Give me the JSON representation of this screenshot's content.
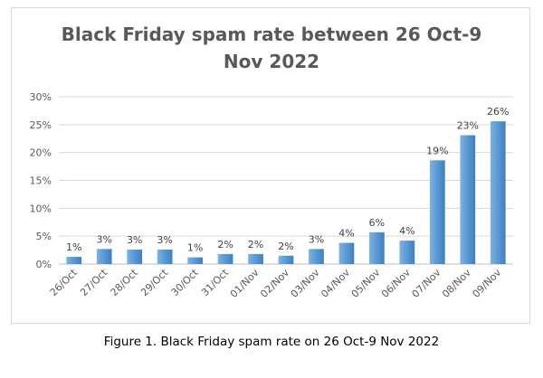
{
  "chart_data": {
    "type": "bar",
    "title_lines": [
      "Black Friday spam rate between 26 Oct-9",
      "Nov 2022"
    ],
    "xlabel": "",
    "ylabel": "",
    "categories": [
      "26/Oct",
      "27/Oct",
      "28/Oct",
      "29/Oct",
      "30/Oct",
      "31/Oct",
      "01/Nov",
      "02/Nov",
      "03/Nov",
      "04/Nov",
      "05/Nov",
      "06/Nov",
      "07/Nov",
      "08/Nov",
      "09/Nov"
    ],
    "values": [
      1.3,
      2.7,
      2.6,
      2.6,
      1.2,
      1.8,
      1.8,
      1.5,
      2.7,
      3.8,
      5.7,
      4.2,
      18.6,
      23.1,
      25.6
    ],
    "data_labels": [
      "1%",
      "3%",
      "3%",
      "3%",
      "1%",
      "2%",
      "2%",
      "2%",
      "3%",
      "4%",
      "6%",
      "4%",
      "19%",
      "23%",
      "26%"
    ],
    "y_ticks": [
      0,
      5,
      10,
      15,
      20,
      25,
      30
    ],
    "y_tick_labels": [
      "0%",
      "5%",
      "10%",
      "15%",
      "20%",
      "25%",
      "30%"
    ],
    "ylim": [
      0,
      30
    ],
    "grid": true,
    "legend": "none",
    "bar_color": "#5b9bd5"
  },
  "caption": "Figure 1. Black Friday spam rate on 26 Oct-9 Nov 2022"
}
